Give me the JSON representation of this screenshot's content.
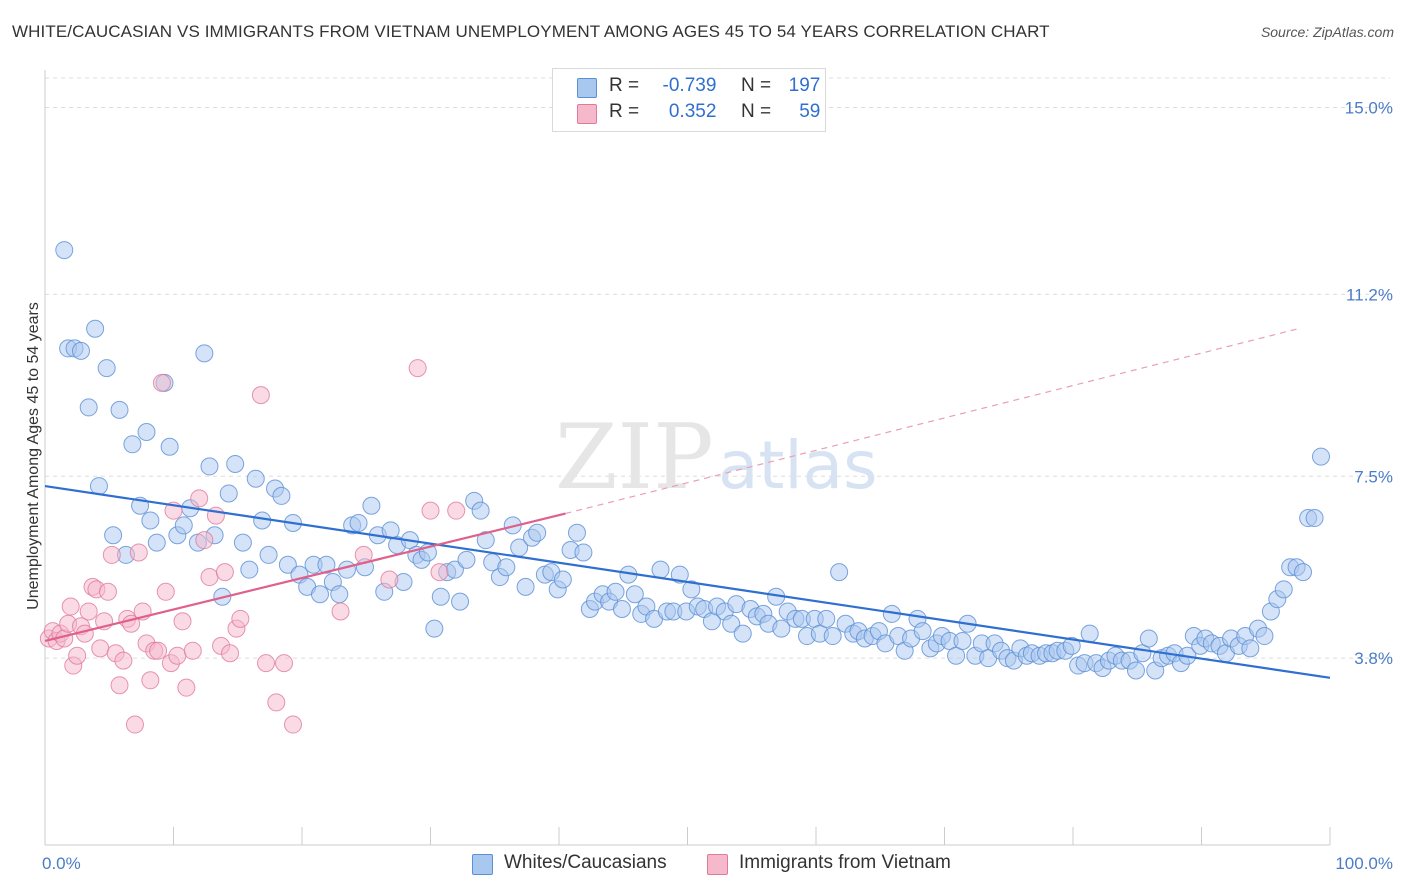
{
  "title": "WHITE/CAUCASIAN VS IMMIGRANTS FROM VIETNAM UNEMPLOYMENT AMONG AGES 45 TO 54 YEARS CORRELATION CHART",
  "source": "Source: ZipAtlas.com",
  "watermark": {
    "zip": "ZIP",
    "atlas": "atlas"
  },
  "legend": {
    "r_label": "R =",
    "n_label": "N =",
    "rows": [
      {
        "r": "-0.739",
        "n": "197",
        "color": "#a9c8f0",
        "border": "#5b8fd6"
      },
      {
        "r": "0.352",
        "n": "59",
        "color": "#f6b8cb",
        "border": "#e07a9c"
      }
    ]
  },
  "chart_data": {
    "type": "scatter",
    "title": "WHITE/CAUCASIAN VS IMMIGRANTS FROM VIETNAM UNEMPLOYMENT AMONG AGES 45 TO 54 YEARS CORRELATION CHART",
    "xlabel": "",
    "ylabel": "Unemployment Among Ages 45 to 54 years",
    "xlim": [
      0,
      100
    ],
    "ylim": [
      0,
      15.6
    ],
    "x_tick_labels": [
      "0.0%",
      "100.0%"
    ],
    "y_ticks": [
      3.8,
      7.5,
      11.2,
      15.0
    ],
    "y_tick_labels": [
      "3.8%",
      "7.5%",
      "11.2%",
      "15.0%"
    ],
    "grid": true,
    "legend_position": "top-center",
    "series": [
      {
        "name": "Whites/Caucasians",
        "color": "#a9c8f0",
        "stroke": "#5b8fd6",
        "trend": {
          "x0": 0,
          "y0": 7.3,
          "x1": 100,
          "y1": 3.4,
          "solid_to": 100
        },
        "points": [
          [
            1.5,
            12.1
          ],
          [
            1.8,
            10.1
          ],
          [
            2.3,
            10.1
          ],
          [
            2.8,
            10.05
          ],
          [
            3.4,
            8.9
          ],
          [
            3.9,
            10.5
          ],
          [
            4.2,
            7.3
          ],
          [
            4.8,
            9.7
          ],
          [
            5.3,
            6.3
          ],
          [
            5.8,
            8.85
          ],
          [
            6.3,
            5.9
          ],
          [
            6.8,
            8.15
          ],
          [
            7.4,
            6.9
          ],
          [
            7.9,
            8.4
          ],
          [
            8.2,
            6.6
          ],
          [
            8.7,
            6.15
          ],
          [
            9.3,
            9.4
          ],
          [
            9.7,
            8.1
          ],
          [
            10.3,
            6.3
          ],
          [
            10.8,
            6.5
          ],
          [
            11.3,
            6.85
          ],
          [
            11.9,
            6.15
          ],
          [
            12.4,
            10.0
          ],
          [
            12.8,
            7.7
          ],
          [
            13.2,
            6.3
          ],
          [
            13.8,
            5.05
          ],
          [
            14.3,
            7.15
          ],
          [
            14.8,
            7.75
          ],
          [
            15.4,
            6.15
          ],
          [
            15.9,
            5.6
          ],
          [
            16.4,
            7.45
          ],
          [
            16.9,
            6.6
          ],
          [
            17.4,
            5.9
          ],
          [
            17.9,
            7.25
          ],
          [
            18.4,
            7.1
          ],
          [
            18.9,
            5.7
          ],
          [
            19.3,
            6.55
          ],
          [
            19.8,
            5.5
          ],
          [
            20.4,
            5.25
          ],
          [
            20.9,
            5.7
          ],
          [
            21.4,
            5.1
          ],
          [
            21.9,
            5.7
          ],
          [
            22.4,
            5.35
          ],
          [
            22.9,
            5.1
          ],
          [
            23.5,
            5.6
          ],
          [
            23.9,
            6.5
          ],
          [
            24.4,
            6.55
          ],
          [
            24.9,
            5.65
          ],
          [
            25.4,
            6.9
          ],
          [
            25.9,
            6.3
          ],
          [
            26.4,
            5.15
          ],
          [
            26.9,
            6.4
          ],
          [
            27.4,
            6.1
          ],
          [
            27.9,
            5.35
          ],
          [
            28.4,
            6.2
          ],
          [
            28.9,
            5.9
          ],
          [
            29.3,
            5.8
          ],
          [
            29.8,
            5.95
          ],
          [
            30.3,
            4.4
          ],
          [
            30.8,
            5.05
          ],
          [
            31.3,
            5.55
          ],
          [
            31.9,
            5.6
          ],
          [
            32.3,
            4.95
          ],
          [
            32.8,
            5.8
          ],
          [
            33.4,
            7.0
          ],
          [
            33.9,
            6.8
          ],
          [
            34.3,
            6.2
          ],
          [
            34.8,
            5.75
          ],
          [
            35.4,
            5.45
          ],
          [
            35.9,
            5.65
          ],
          [
            36.4,
            6.5
          ],
          [
            36.9,
            6.05
          ],
          [
            37.4,
            5.25
          ],
          [
            37.9,
            6.25
          ],
          [
            38.3,
            6.35
          ],
          [
            38.9,
            5.5
          ],
          [
            39.4,
            5.55
          ],
          [
            39.9,
            5.2
          ],
          [
            40.3,
            5.4
          ],
          [
            40.9,
            6.0
          ],
          [
            41.4,
            6.35
          ],
          [
            41.9,
            5.95
          ],
          [
            42.4,
            4.8
          ],
          [
            42.8,
            4.95
          ],
          [
            43.4,
            5.1
          ],
          [
            43.9,
            4.95
          ],
          [
            44.4,
            5.15
          ],
          [
            44.9,
            4.8
          ],
          [
            45.4,
            5.5
          ],
          [
            45.9,
            5.1
          ],
          [
            46.4,
            4.7
          ],
          [
            46.8,
            4.85
          ],
          [
            47.4,
            4.6
          ],
          [
            47.9,
            5.6
          ],
          [
            48.4,
            4.75
          ],
          [
            48.9,
            4.75
          ],
          [
            49.4,
            5.5
          ],
          [
            49.9,
            4.75
          ],
          [
            50.3,
            5.2
          ],
          [
            50.8,
            4.85
          ],
          [
            51.3,
            4.8
          ],
          [
            51.9,
            4.55
          ],
          [
            52.3,
            4.85
          ],
          [
            52.9,
            4.75
          ],
          [
            53.4,
            4.5
          ],
          [
            53.8,
            4.9
          ],
          [
            54.3,
            4.3
          ],
          [
            54.9,
            4.8
          ],
          [
            55.4,
            4.65
          ],
          [
            55.9,
            4.7
          ],
          [
            56.3,
            4.5
          ],
          [
            56.9,
            5.05
          ],
          [
            57.3,
            4.4
          ],
          [
            57.8,
            4.75
          ],
          [
            58.4,
            4.6
          ],
          [
            58.9,
            4.6
          ],
          [
            59.3,
            4.25
          ],
          [
            59.9,
            4.6
          ],
          [
            60.3,
            4.3
          ],
          [
            60.8,
            4.6
          ],
          [
            61.3,
            4.25
          ],
          [
            61.8,
            5.55
          ],
          [
            62.3,
            4.5
          ],
          [
            62.9,
            4.3
          ],
          [
            63.3,
            4.35
          ],
          [
            63.8,
            4.2
          ],
          [
            64.4,
            4.25
          ],
          [
            64.9,
            4.35
          ],
          [
            65.4,
            4.1
          ],
          [
            65.9,
            4.7
          ],
          [
            66.4,
            4.25
          ],
          [
            66.9,
            3.95
          ],
          [
            67.4,
            4.2
          ],
          [
            67.9,
            4.6
          ],
          [
            68.3,
            4.35
          ],
          [
            68.9,
            4.0
          ],
          [
            69.4,
            4.1
          ],
          [
            69.8,
            4.25
          ],
          [
            70.4,
            4.15
          ],
          [
            70.9,
            3.85
          ],
          [
            71.4,
            4.15
          ],
          [
            71.8,
            4.5
          ],
          [
            72.4,
            3.85
          ],
          [
            72.9,
            4.1
          ],
          [
            73.4,
            3.8
          ],
          [
            73.9,
            4.1
          ],
          [
            74.4,
            3.95
          ],
          [
            74.9,
            3.8
          ],
          [
            75.4,
            3.75
          ],
          [
            75.9,
            4.0
          ],
          [
            76.4,
            3.85
          ],
          [
            76.8,
            3.9
          ],
          [
            77.4,
            3.85
          ],
          [
            77.9,
            3.9
          ],
          [
            78.4,
            3.9
          ],
          [
            78.8,
            3.95
          ],
          [
            79.4,
            3.95
          ],
          [
            79.9,
            4.05
          ],
          [
            80.4,
            3.65
          ],
          [
            80.9,
            3.7
          ],
          [
            81.3,
            4.3
          ],
          [
            81.8,
            3.7
          ],
          [
            82.3,
            3.6
          ],
          [
            82.8,
            3.75
          ],
          [
            83.3,
            3.85
          ],
          [
            83.8,
            3.75
          ],
          [
            84.4,
            3.75
          ],
          [
            84.9,
            3.55
          ],
          [
            85.4,
            3.9
          ],
          [
            85.9,
            4.2
          ],
          [
            86.4,
            3.55
          ],
          [
            86.9,
            3.8
          ],
          [
            87.4,
            3.85
          ],
          [
            87.9,
            3.9
          ],
          [
            88.4,
            3.7
          ],
          [
            88.9,
            3.85
          ],
          [
            89.4,
            4.25
          ],
          [
            89.9,
            4.05
          ],
          [
            90.3,
            4.2
          ],
          [
            90.8,
            4.1
          ],
          [
            91.4,
            4.05
          ],
          [
            91.9,
            3.9
          ],
          [
            92.3,
            4.2
          ],
          [
            92.9,
            4.05
          ],
          [
            93.4,
            4.25
          ],
          [
            93.8,
            4.0
          ],
          [
            94.4,
            4.4
          ],
          [
            94.9,
            4.25
          ],
          [
            95.4,
            4.75
          ],
          [
            95.9,
            5.0
          ],
          [
            96.4,
            5.2
          ],
          [
            96.9,
            5.65
          ],
          [
            97.4,
            5.65
          ],
          [
            97.9,
            5.55
          ],
          [
            98.3,
            6.65
          ],
          [
            98.8,
            6.65
          ],
          [
            99.3,
            7.9
          ]
        ]
      },
      {
        "name": "Immigrants from Vietnam",
        "color": "#f6b8cb",
        "stroke": "#e07a9c",
        "trend": {
          "x0": 0,
          "y0": 4.15,
          "x1": 100,
          "y1": 10.55,
          "solid_to": 40.5
        },
        "points": [
          [
            0.3,
            4.2
          ],
          [
            0.6,
            4.35
          ],
          [
            0.9,
            4.15
          ],
          [
            1.2,
            4.3
          ],
          [
            1.5,
            4.2
          ],
          [
            1.8,
            4.5
          ],
          [
            2.0,
            4.85
          ],
          [
            2.2,
            3.65
          ],
          [
            2.5,
            3.85
          ],
          [
            2.8,
            4.45
          ],
          [
            3.1,
            4.3
          ],
          [
            3.4,
            4.75
          ],
          [
            3.7,
            5.25
          ],
          [
            4.0,
            5.2
          ],
          [
            4.3,
            4.0
          ],
          [
            4.6,
            4.55
          ],
          [
            4.9,
            5.15
          ],
          [
            5.2,
            5.9
          ],
          [
            5.5,
            3.9
          ],
          [
            5.8,
            3.25
          ],
          [
            6.1,
            3.75
          ],
          [
            6.4,
            4.6
          ],
          [
            6.7,
            4.5
          ],
          [
            7.0,
            2.45
          ],
          [
            7.3,
            5.95
          ],
          [
            7.6,
            4.75
          ],
          [
            7.9,
            4.1
          ],
          [
            8.2,
            3.35
          ],
          [
            8.5,
            3.95
          ],
          [
            8.8,
            3.95
          ],
          [
            9.1,
            9.4
          ],
          [
            9.4,
            5.15
          ],
          [
            9.8,
            3.7
          ],
          [
            10.0,
            6.8
          ],
          [
            10.3,
            3.85
          ],
          [
            10.7,
            4.55
          ],
          [
            11.0,
            3.2
          ],
          [
            11.5,
            3.95
          ],
          [
            12.0,
            7.05
          ],
          [
            12.4,
            6.2
          ],
          [
            12.8,
            5.45
          ],
          [
            13.3,
            6.7
          ],
          [
            13.7,
            4.05
          ],
          [
            14.0,
            5.55
          ],
          [
            14.4,
            3.9
          ],
          [
            14.9,
            4.4
          ],
          [
            15.2,
            4.6
          ],
          [
            16.8,
            9.15
          ],
          [
            17.2,
            3.7
          ],
          [
            18.0,
            2.9
          ],
          [
            18.6,
            3.7
          ],
          [
            19.3,
            2.45
          ],
          [
            23.0,
            4.75
          ],
          [
            24.8,
            5.9
          ],
          [
            26.8,
            5.4
          ],
          [
            29.0,
            9.7
          ],
          [
            30.0,
            6.8
          ],
          [
            30.7,
            5.55
          ],
          [
            32.0,
            6.8
          ]
        ]
      }
    ]
  },
  "bottom_legend": [
    {
      "label": "Whites/Caucasians",
      "color": "#a9c8f0",
      "border": "#5b8fd6"
    },
    {
      "label": "Immigrants from Vietnam",
      "color": "#f6b8cb",
      "border": "#e07a9c"
    }
  ]
}
